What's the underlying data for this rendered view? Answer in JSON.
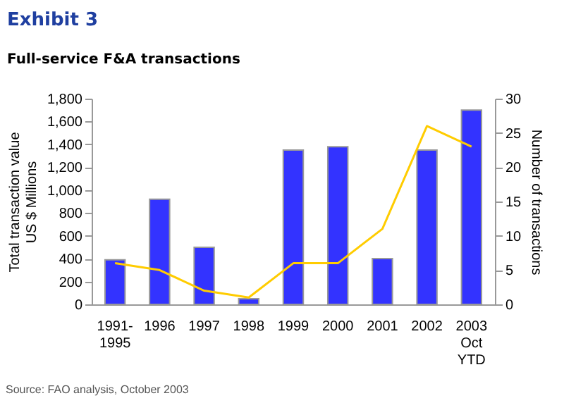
{
  "chart_data": {
    "type": "bar",
    "title": "Exhibit 3",
    "subtitle": "Full-service F&A transactions",
    "categories": [
      "1991-\n1995",
      "1996",
      "1997",
      "1998",
      "1999",
      "2000",
      "2001",
      "2002",
      "2003\nOct\nYTD"
    ],
    "series": [
      {
        "color": "#3333ff",
        "values": [
          390,
          920,
          500,
          50,
          1350,
          1380,
          400,
          1350,
          1700
        ]
      },
      {
        "type": "line",
        "axis": "y2",
        "color": "#ffcc00",
        "values": [
          6,
          5,
          2,
          1,
          6,
          6,
          11,
          26,
          23
        ]
      }
    ],
    "ylabel": "Total transaction value\nUS $ Millions",
    "y2label": "Number of transactions",
    "ylim": [
      0,
      1800
    ],
    "yticks": [
      0,
      200,
      400,
      600,
      800,
      {
        "value": 1000,
        "label": "1,000"
      },
      {
        "value": 1200,
        "label": "1,200"
      },
      {
        "value": 1400,
        "label": "1,400"
      },
      {
        "value": 1600,
        "label": "1,600"
      },
      {
        "value": 1800,
        "label": "1,800"
      }
    ],
    "y2lim": [
      0,
      30
    ],
    "y2ticks": [
      0,
      5,
      10,
      15,
      20,
      25,
      30
    ],
    "grid": false,
    "marker": "none",
    "line_style": "solid",
    "annotations": [
      "Source: FAO analysis, October 2003"
    ]
  }
}
